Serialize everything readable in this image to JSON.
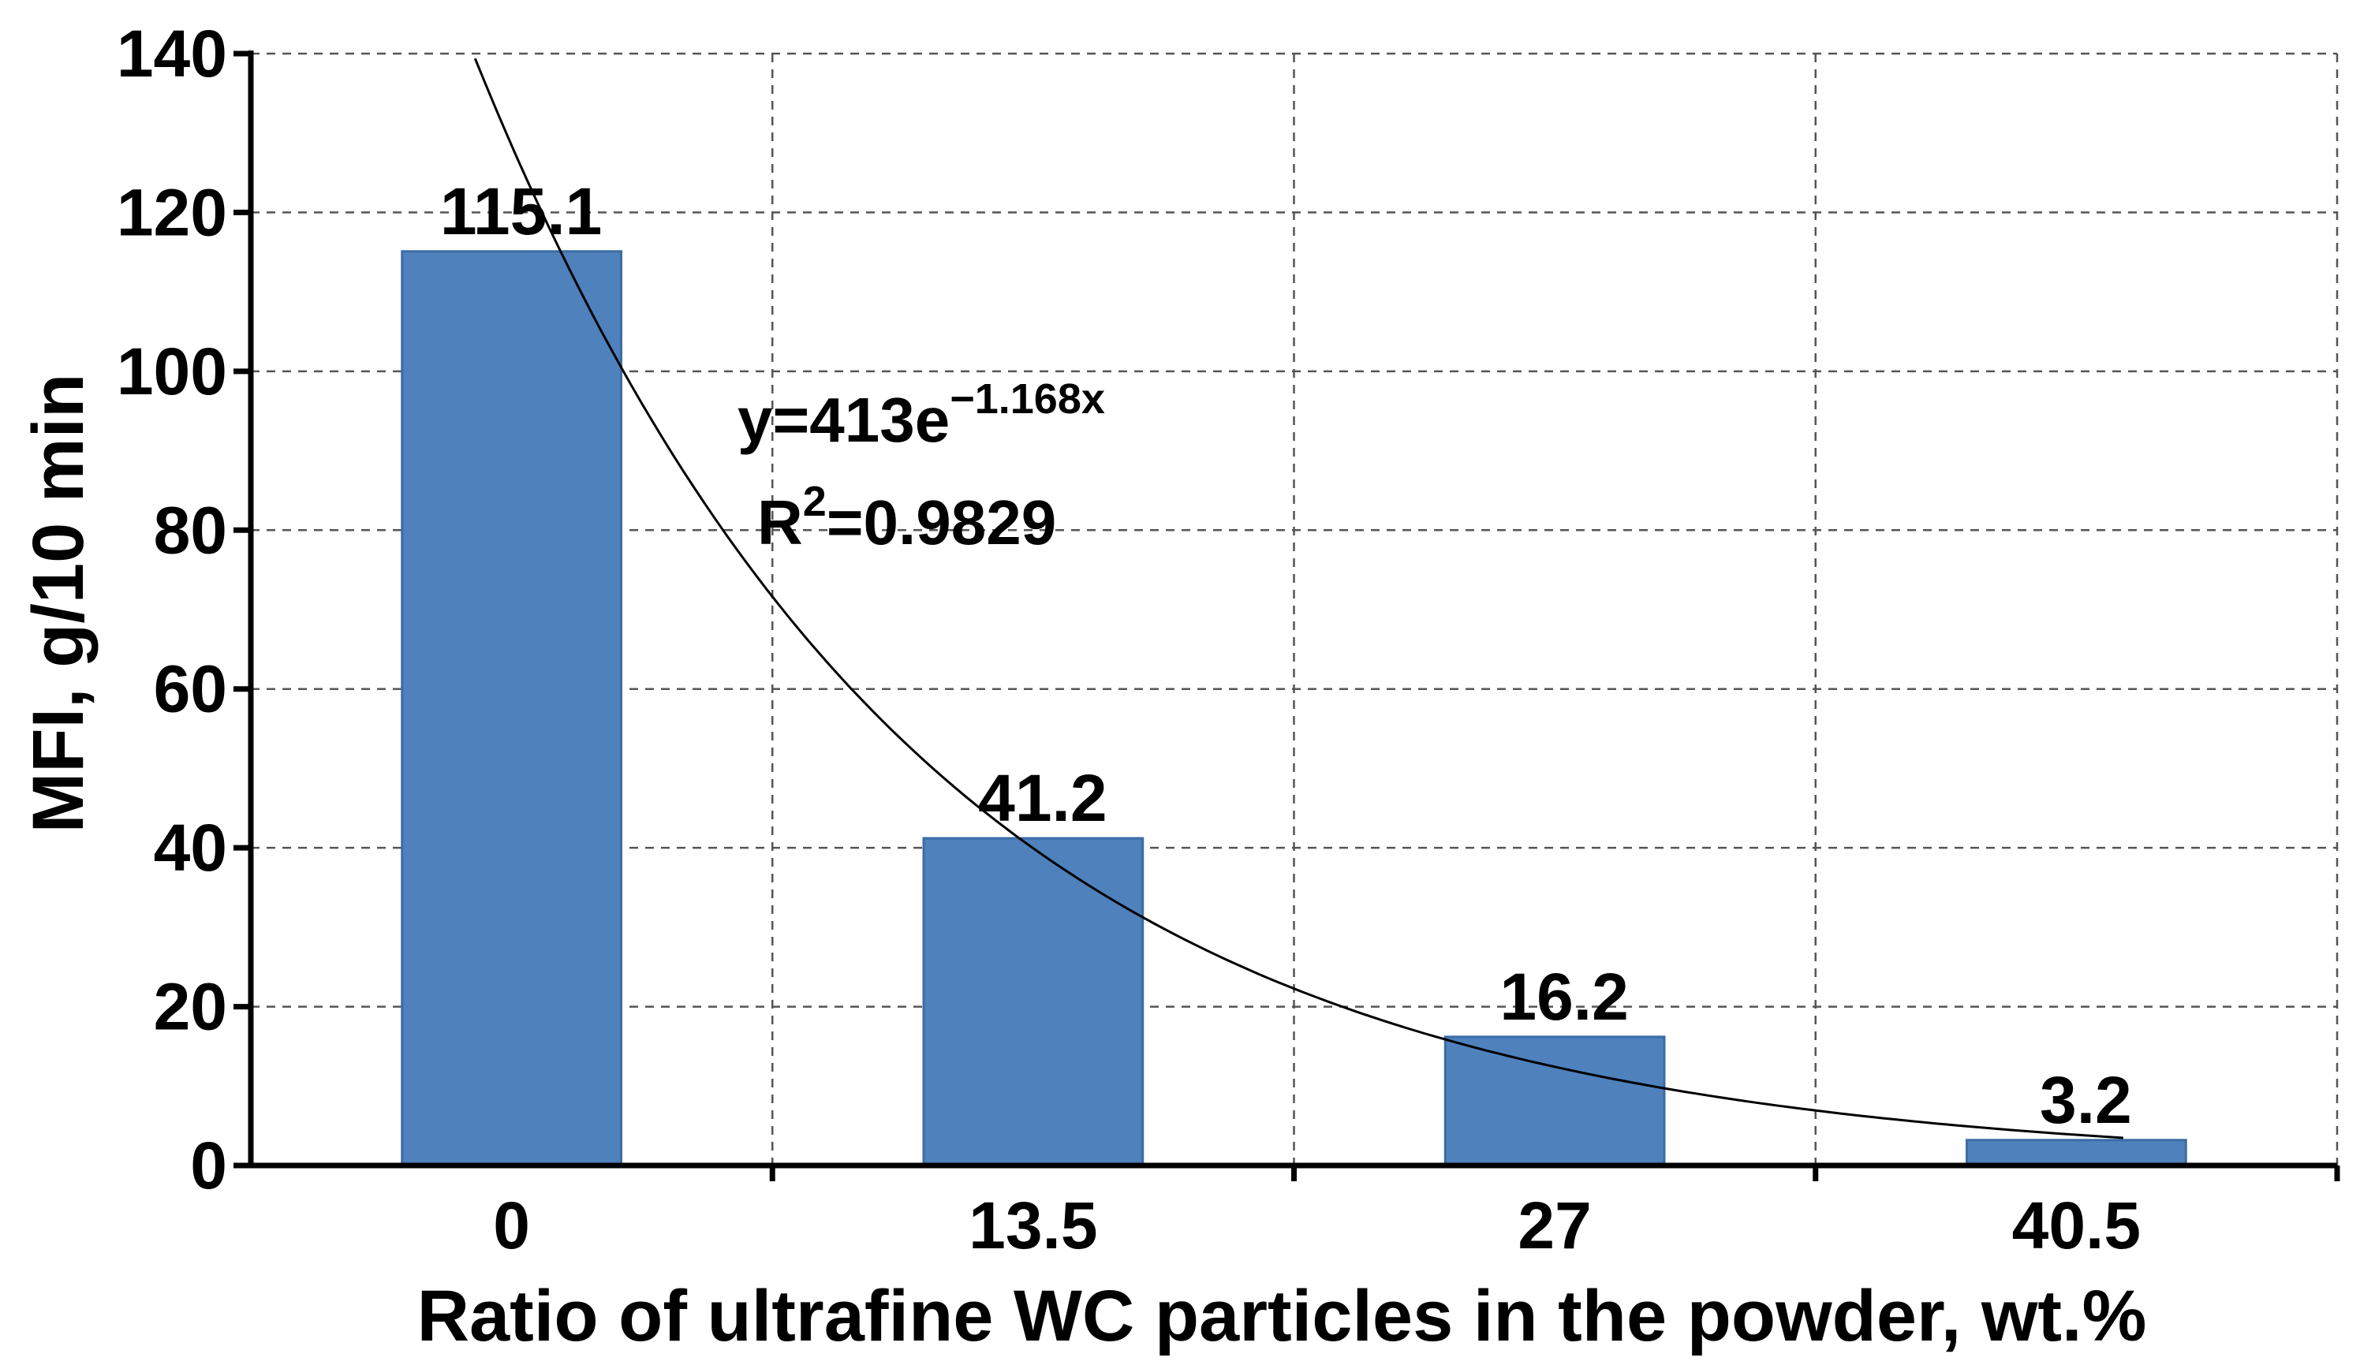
{
  "chart_data": {
    "type": "bar",
    "categories": [
      "0",
      "13.5",
      "27",
      "40.5"
    ],
    "values": [
      115.1,
      41.2,
      16.2,
      3.2
    ],
    "data_labels": [
      "115.1",
      "41.2",
      "16.2",
      "3.2"
    ],
    "title": "",
    "xlabel": "Ratio of ultrafine WC particles in the powder, wt.%",
    "ylabel": "MFI, g/10 min",
    "ylim": [
      0,
      140
    ],
    "yticks": [
      "0",
      "20",
      "40",
      "60",
      "80",
      "100",
      "120",
      "140"
    ],
    "grid": true,
    "bar_color": "#4f81bd",
    "trendline": {
      "type": "exponential",
      "a": 413,
      "b": -1.168,
      "equation_prefix": "y=413e",
      "equation_exponent": "−1.168x",
      "r2_prefix": "R",
      "r2_exponent": "2",
      "r2_value": "=0.9829"
    }
  }
}
